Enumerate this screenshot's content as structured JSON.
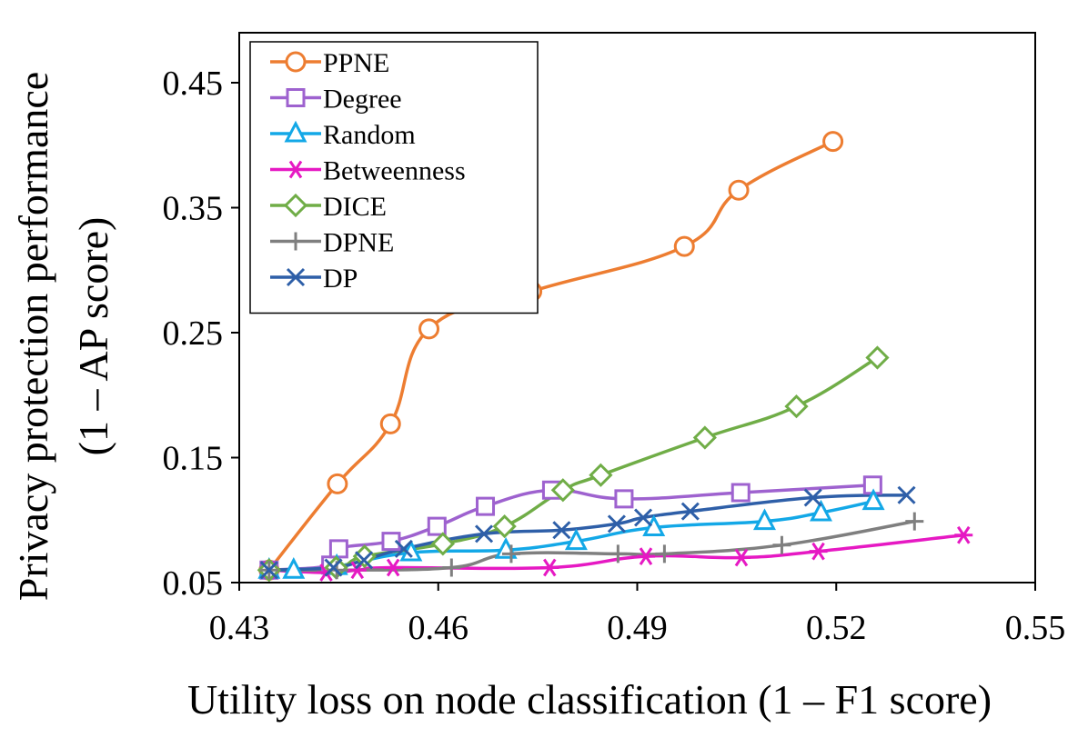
{
  "chart_data": {
    "type": "line",
    "title": "",
    "xlabel": "Utility loss on node classification (1 – F1 score)",
    "ylabel_line1": "Privacy protection performance",
    "ylabel_line2": "(1 – AP score)",
    "xlim": [
      0.43,
      0.55
    ],
    "ylim": [
      0.05,
      0.49
    ],
    "xticks": [
      0.43,
      0.46,
      0.49,
      0.52,
      0.55
    ],
    "xtick_labels": [
      "0.43",
      "0.46",
      "0.49",
      "0.52",
      "0.55"
    ],
    "yticks": [
      0.05,
      0.15,
      0.25,
      0.35,
      0.45
    ],
    "ytick_labels": [
      "0.05",
      "0.15",
      "0.25",
      "0.35",
      "0.45"
    ],
    "grid": false,
    "legend_position": "top-left",
    "series": [
      {
        "name": "PPNE",
        "color": "#ED7D31",
        "marker": "circle",
        "x": [
          0.4345,
          0.4448,
          0.4528,
          0.4586,
          0.4741,
          0.4971,
          0.5053,
          0.5195
        ],
        "y": [
          0.06,
          0.129,
          0.177,
          0.253,
          0.283,
          0.319,
          0.364,
          0.403
        ]
      },
      {
        "name": "Degree",
        "color": "#9E62CF",
        "marker": "square",
        "x": [
          0.4345,
          0.4438,
          0.445,
          0.4529,
          0.4598,
          0.4671,
          0.4771,
          0.488,
          0.5056,
          0.5255
        ],
        "y": [
          0.06,
          0.064,
          0.077,
          0.083,
          0.095,
          0.111,
          0.124,
          0.117,
          0.122,
          0.128
        ]
      },
      {
        "name": "Random",
        "color": "#13A8E7",
        "marker": "triangle",
        "x": [
          0.4345,
          0.4382,
          0.4447,
          0.4559,
          0.4702,
          0.4808,
          0.4925,
          0.5092,
          0.5177,
          0.5256
        ],
        "y": [
          0.06,
          0.06,
          0.063,
          0.074,
          0.076,
          0.083,
          0.094,
          0.099,
          0.106,
          0.115
        ]
      },
      {
        "name": "Betweenness",
        "color": "#E619C3",
        "marker": "star",
        "x": [
          0.4345,
          0.4431,
          0.4478,
          0.4532,
          0.4768,
          0.4913,
          0.5057,
          0.5173,
          0.5392
        ],
        "y": [
          0.06,
          0.058,
          0.06,
          0.062,
          0.062,
          0.071,
          0.07,
          0.075,
          0.088
        ]
      },
      {
        "name": "DICE",
        "color": "#70AD47",
        "marker": "diamond",
        "x": [
          0.4345,
          0.4446,
          0.4489,
          0.4607,
          0.47,
          0.4788,
          0.4845,
          0.5002,
          0.514,
          0.5262
        ],
        "y": [
          0.06,
          0.062,
          0.071,
          0.081,
          0.095,
          0.124,
          0.136,
          0.166,
          0.191,
          0.23
        ]
      },
      {
        "name": "DPNE",
        "color": "#7F7F7F",
        "marker": "plus",
        "x": [
          0.4345,
          0.4447,
          0.462,
          0.471,
          0.4871,
          0.4941,
          0.5118,
          0.5318
        ],
        "y": [
          0.06,
          0.06,
          0.062,
          0.073,
          0.073,
          0.073,
          0.08,
          0.099
        ]
      },
      {
        "name": "DP",
        "color": "#2E5FA8",
        "marker": "x",
        "x": [
          0.4345,
          0.4442,
          0.4488,
          0.4548,
          0.4669,
          0.4786,
          0.4869,
          0.4909,
          0.498,
          0.5165,
          0.5306
        ],
        "y": [
          0.06,
          0.062,
          0.068,
          0.077,
          0.089,
          0.092,
          0.097,
          0.102,
          0.107,
          0.118,
          0.12
        ]
      }
    ]
  }
}
